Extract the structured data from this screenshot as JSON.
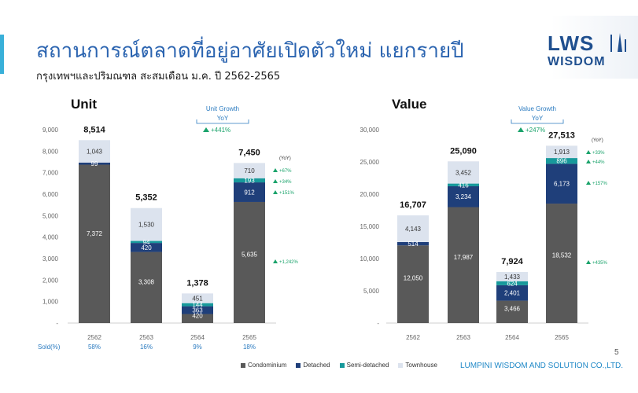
{
  "slide": {
    "title": "สถานการณ์ตลาดที่อยู่อาศัยเปิดตัวใหม่ แยกรายปี",
    "subtitle": "กรุงเทพฯและปริมณฑล สะสมเดือน ม.ค. ปี 2562-2565",
    "page_number": "5",
    "footer": "LUMPINI WISDOM AND SOLUTION CO.,LTD.",
    "logo_top": "LWS",
    "logo_bottom": "WISDOM",
    "accent_color": "#39b0d9",
    "brand_color": "#1f4f8f"
  },
  "legend": [
    {
      "name": "Condominium",
      "color": "#595959"
    },
    {
      "name": "Detached",
      "color": "#1f3f7a"
    },
    {
      "name": "Semi-detached",
      "color": "#17999b"
    },
    {
      "name": "Townhouse",
      "color": "#dce3ee"
    }
  ],
  "chart_data": [
    {
      "type": "bar",
      "stacked": true,
      "title": "Unit",
      "categories": [
        "2562",
        "2563",
        "2564",
        "2565"
      ],
      "ylim": [
        0,
        9000
      ],
      "yticks": [
        "-",
        "1,000",
        "2,000",
        "3,000",
        "4,000",
        "5,000",
        "6,000",
        "7,000",
        "8,000",
        "9,000"
      ],
      "series": [
        {
          "name": "Condominium",
          "values": [
            7372,
            3308,
            420,
            5635
          ],
          "labels": [
            "7,372",
            "3,308",
            "420",
            "5,635"
          ]
        },
        {
          "name": "Detached",
          "values": [
            99,
            420,
            363,
            912
          ],
          "labels": [
            "99",
            "420",
            "363",
            "912"
          ]
        },
        {
          "name": "Semi-detached",
          "values": [
            0,
            94,
            144,
            193
          ],
          "labels": [
            "",
            "94",
            "144",
            "193"
          ]
        },
        {
          "name": "Townhouse",
          "values": [
            1043,
            1530,
            451,
            710
          ],
          "labels": [
            "1,043",
            "1,530",
            "451",
            "710"
          ]
        }
      ],
      "totals": [
        "8,514",
        "5,352",
        "1,378",
        "7,450"
      ],
      "growth_box": {
        "title": "Unit Growth",
        "yoy": "YoY",
        "value": "+441%"
      },
      "yoy_header": "(YoY)",
      "yoy_changes": [
        "+67%",
        "+34%",
        "+151%",
        "+1,242%"
      ],
      "sold_label": "Sold(%)",
      "sold": [
        "58%",
        "16%",
        "9%",
        "18%"
      ]
    },
    {
      "type": "bar",
      "stacked": true,
      "title": "Value",
      "categories": [
        "2562",
        "2563",
        "2564",
        "2565"
      ],
      "ylim": [
        0,
        30000
      ],
      "yticks": [
        "-",
        "5,000",
        "10,000",
        "15,000",
        "20,000",
        "25,000",
        "30,000"
      ],
      "series": [
        {
          "name": "Condominium",
          "values": [
            12050,
            17987,
            3466,
            18532
          ],
          "labels": [
            "12,050",
            "17,987",
            "3,466",
            "18,532"
          ]
        },
        {
          "name": "Detached",
          "values": [
            514,
            3234,
            2401,
            6173
          ],
          "labels": [
            "514",
            "3,234",
            "2,401",
            "6,173"
          ]
        },
        {
          "name": "Semi-detached",
          "values": [
            0,
            416,
            624,
            896
          ],
          "labels": [
            "",
            "416",
            "624",
            "896"
          ]
        },
        {
          "name": "Townhouse",
          "values": [
            4143,
            3452,
            1433,
            1913
          ],
          "labels": [
            "4,143",
            "3,452",
            "1,433",
            "1,913"
          ]
        }
      ],
      "totals": [
        "16,707",
        "25,090",
        "7,924",
        "27,513"
      ],
      "growth_box": {
        "title": "Value Growth",
        "yoy": "YoY",
        "value": "+247%"
      },
      "yoy_header": "(YoY)",
      "yoy_changes": [
        "+33%",
        "+44%",
        "+157%",
        "+435%"
      ]
    }
  ]
}
